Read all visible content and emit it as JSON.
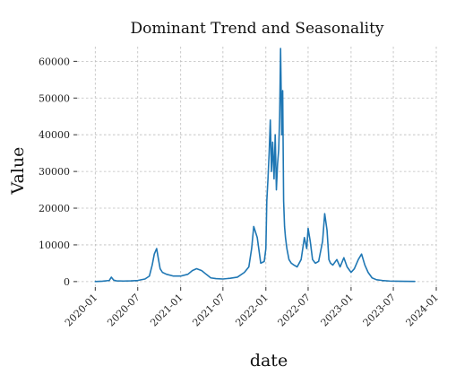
{
  "chart_data": {
    "type": "line",
    "title": "Dominant Trend and Seasonality",
    "xlabel": "date",
    "ylabel": "Value",
    "grid": true,
    "legend": "none",
    "xlim": [
      "2019-10-15",
      "2024-01-01"
    ],
    "ylim": [
      -1500,
      64000
    ],
    "x_ticks": [
      "2020-01",
      "2020-07",
      "2021-01",
      "2021-07",
      "2022-01",
      "2022-07",
      "2023-01",
      "2023-07",
      "2024-01"
    ],
    "y_ticks": [
      0,
      10000,
      20000,
      30000,
      40000,
      50000,
      60000
    ],
    "color": "#1f77b4",
    "series": [
      {
        "x": [
          "2020-01-01",
          "2020-02-01",
          "2020-03-01",
          "2020-03-10",
          "2020-03-20",
          "2020-04-01",
          "2020-05-01",
          "2020-06-01",
          "2020-07-01",
          "2020-08-01",
          "2020-08-20",
          "2020-09-01",
          "2020-09-10",
          "2020-09-20",
          "2020-09-28",
          "2020-10-05",
          "2020-10-15",
          "2020-11-01",
          "2020-12-01",
          "2021-01-01",
          "2021-02-01",
          "2021-02-20",
          "2021-03-10",
          "2021-04-01",
          "2021-04-20",
          "2021-05-10",
          "2021-06-01",
          "2021-07-01",
          "2021-08-01",
          "2021-09-01",
          "2021-10-01",
          "2021-10-20",
          "2021-11-01",
          "2021-11-10",
          "2021-11-25",
          "2021-12-10",
          "2021-12-25",
          "2022-01-01",
          "2022-01-05",
          "2022-01-10",
          "2022-01-15",
          "2022-01-20",
          "2022-01-25",
          "2022-01-30",
          "2022-02-05",
          "2022-02-10",
          "2022-02-15",
          "2022-02-20",
          "2022-02-25",
          "2022-03-01",
          "2022-03-05",
          "2022-03-10",
          "2022-03-14",
          "2022-03-18",
          "2022-03-22",
          "2022-03-26",
          "2022-04-01",
          "2022-04-10",
          "2022-04-20",
          "2022-05-01",
          "2022-05-15",
          "2022-06-01",
          "2022-06-15",
          "2022-06-25",
          "2022-07-01",
          "2022-07-10",
          "2022-07-20",
          "2022-08-01",
          "2022-08-15",
          "2022-09-01",
          "2022-09-10",
          "2022-09-20",
          "2022-09-28",
          "2022-10-05",
          "2022-10-15",
          "2022-11-01",
          "2022-11-15",
          "2022-12-01",
          "2022-12-15",
          "2023-01-01",
          "2023-01-15",
          "2023-02-01",
          "2023-02-15",
          "2023-03-01",
          "2023-03-15",
          "2023-04-01",
          "2023-04-20",
          "2023-05-15",
          "2023-06-15",
          "2023-07-15",
          "2023-08-15",
          "2023-10-01"
        ],
        "values": [
          0,
          100,
          300,
          1200,
          400,
          200,
          150,
          200,
          300,
          700,
          1500,
          4500,
          7500,
          9000,
          6000,
          3500,
          2500,
          2000,
          1500,
          1500,
          2000,
          3000,
          3500,
          3000,
          2000,
          1000,
          800,
          700,
          900,
          1200,
          2500,
          4000,
          9000,
          15000,
          12000,
          5000,
          5500,
          9000,
          22000,
          28000,
          35000,
          44000,
          30000,
          38000,
          28000,
          40000,
          25000,
          32000,
          36000,
          45000,
          63500,
          40000,
          52000,
          22000,
          15000,
          12000,
          9000,
          6000,
          5000,
          4500,
          4000,
          6000,
          12000,
          9000,
          14500,
          11000,
          6000,
          5000,
          5500,
          11000,
          18500,
          14000,
          6000,
          5000,
          4500,
          6000,
          4000,
          6500,
          4000,
          2500,
          3500,
          6000,
          7500,
          4500,
          2500,
          1000,
          500,
          300,
          150,
          100,
          80,
          50
        ]
      }
    ]
  }
}
